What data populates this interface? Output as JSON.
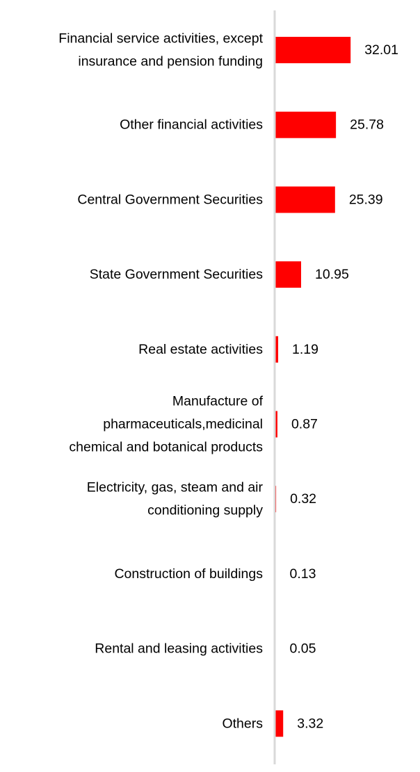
{
  "chart_data": {
    "type": "bar",
    "orientation": "horizontal",
    "title": "",
    "xlabel": "",
    "ylabel": "",
    "categories": [
      [
        "Financial service activities, except",
        "insurance and pension funding"
      ],
      [
        "Other financial activities"
      ],
      [
        "Central Government Securities"
      ],
      [
        "State Government Securities"
      ],
      [
        "Real estate activities"
      ],
      [
        "Manufacture of",
        "pharmaceuticals,medicinal",
        "chemical and botanical products"
      ],
      [
        "Electricity, gas, steam and air",
        "conditioning supply"
      ],
      [
        "Construction of buildings"
      ],
      [
        "Rental and leasing activities"
      ],
      [
        "Others"
      ]
    ],
    "values": [
      32.01,
      25.78,
      25.39,
      10.95,
      1.19,
      0.87,
      0.32,
      0.13,
      0.05,
      3.32
    ],
    "value_labels": [
      "32.01",
      "25.78",
      "25.39",
      "10.95",
      "1.19",
      "0.87",
      "0.32",
      "0.13",
      "0.05",
      "3.32"
    ],
    "xlim": [
      0,
      60
    ],
    "grid": false,
    "legend": "none",
    "bar_color": "#ff0000",
    "axis_color": "#d9d9d9"
  }
}
